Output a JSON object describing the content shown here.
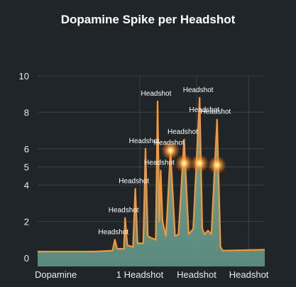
{
  "chart_data": {
    "type": "area",
    "title": "Dopamine Spike per Headshot",
    "xlabel": "",
    "ylabel": "",
    "xlim": [
      0,
      100
    ],
    "ylim": [
      0,
      10
    ],
    "y_ticks": [
      0,
      2,
      4,
      5,
      6,
      8,
      10
    ],
    "x_tick_labels": [
      {
        "x": 8,
        "label": "Dopamine"
      },
      {
        "x": 45,
        "label": "1 Headshot"
      },
      {
        "x": 70,
        "label": "Headshot"
      },
      {
        "x": 93,
        "label": "Headshot"
      }
    ],
    "grid": true,
    "colors": {
      "line": "#f6973a",
      "fill": "#6fa08f",
      "grid": "#3a4247",
      "glow": "#ffb347"
    },
    "series": [
      {
        "values": [
          [
            0,
            0.35
          ],
          [
            25,
            0.35
          ],
          [
            33,
            0.4
          ],
          [
            34,
            1.0
          ],
          [
            35,
            0.5
          ],
          [
            38,
            0.5
          ],
          [
            38.5,
            2.2
          ],
          [
            39.5,
            0.7
          ],
          [
            42,
            0.6
          ],
          [
            43,
            3.8
          ],
          [
            44,
            0.8
          ],
          [
            46.5,
            0.8
          ],
          [
            47.5,
            6.0
          ],
          [
            48.5,
            1.2
          ],
          [
            50,
            1.1
          ],
          [
            52,
            1.0
          ],
          [
            52.8,
            8.6
          ],
          [
            53.6,
            2.0
          ],
          [
            54.2,
            4.8
          ],
          [
            55,
            2.0
          ],
          [
            56.5,
            1.2
          ],
          [
            58.5,
            5.9
          ],
          [
            60.5,
            1.2
          ],
          [
            62,
            1.3
          ],
          [
            64.5,
            6.5
          ],
          [
            66.5,
            1.3
          ],
          [
            68.5,
            1.6
          ],
          [
            71.3,
            8.8
          ],
          [
            72.5,
            1.6
          ],
          [
            73.5,
            1.3
          ],
          [
            75,
            1.5
          ],
          [
            76.5,
            1.3
          ],
          [
            79,
            7.6
          ],
          [
            80.5,
            0.6
          ],
          [
            81.5,
            0.4
          ],
          [
            100,
            0.45
          ]
        ]
      }
    ],
    "annotations": [
      {
        "x": 34,
        "y": 1.0,
        "text": "Headshot"
      },
      {
        "x": 38.5,
        "y": 2.2,
        "text": "Headshot"
      },
      {
        "x": 43,
        "y": 3.8,
        "text": "Headshot"
      },
      {
        "x": 47.5,
        "y": 6.0,
        "text": "Headshot"
      },
      {
        "x": 52.8,
        "y": 8.6,
        "text": "Headshot"
      },
      {
        "x": 54.2,
        "y": 4.8,
        "text": "Headshot"
      },
      {
        "x": 58.5,
        "y": 5.9,
        "text": "Headshot"
      },
      {
        "x": 64.5,
        "y": 6.5,
        "text": "Headshot"
      },
      {
        "x": 71.3,
        "y": 8.8,
        "text": "Headshot"
      },
      {
        "x": 74.0,
        "y": 7.7,
        "text": "Headshot"
      },
      {
        "x": 79,
        "y": 7.6,
        "text": "Headshot"
      }
    ],
    "glow_points": [
      {
        "x": 58.5,
        "y": 5.9
      },
      {
        "x": 64.5,
        "y": 5.2
      },
      {
        "x": 71.3,
        "y": 5.2
      },
      {
        "x": 79,
        "y": 5.1
      }
    ]
  }
}
